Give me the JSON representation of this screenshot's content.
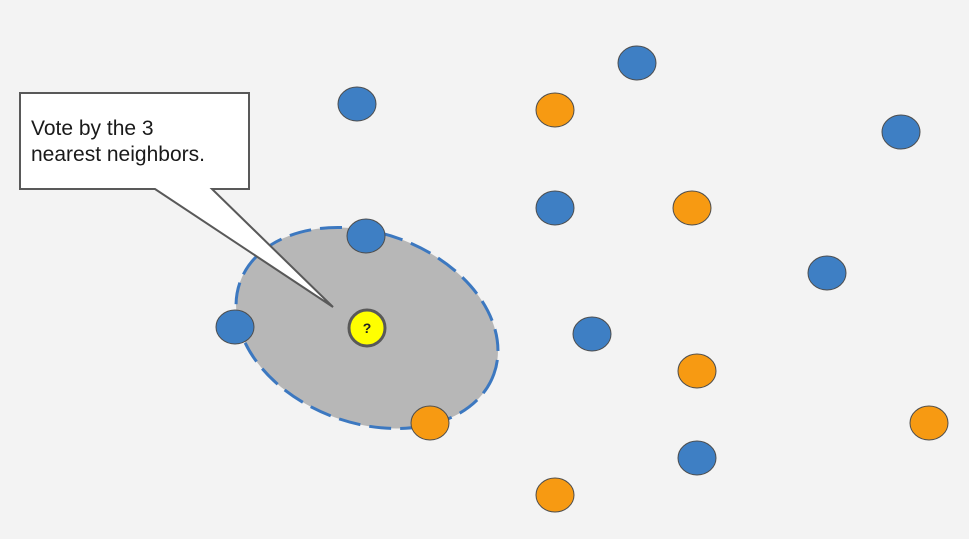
{
  "callout": {
    "text": "Vote by the 3\nnearest neighbors."
  },
  "query_point": {
    "label": "?",
    "color": "#ffff00",
    "border_color": "#595959"
  },
  "neighborhood": {
    "fill": "#b7b7b7",
    "border_color": "#3c78c0",
    "border_style": "dashed"
  },
  "colors": {
    "blue": "#3e7fc4",
    "orange": "#f79a12",
    "point_border": "#4d4d4d",
    "background": "#f3f3f3"
  },
  "points": [
    {
      "class": "blue",
      "in_neighborhood": false
    },
    {
      "class": "orange",
      "in_neighborhood": false
    },
    {
      "class": "blue",
      "in_neighborhood": false
    },
    {
      "class": "blue",
      "in_neighborhood": false
    },
    {
      "class": "blue",
      "in_neighborhood": true
    },
    {
      "class": "blue",
      "in_neighborhood": false
    },
    {
      "class": "orange",
      "in_neighborhood": false
    },
    {
      "class": "blue",
      "in_neighborhood": false
    },
    {
      "class": "blue",
      "in_neighborhood": true
    },
    {
      "class": "blue",
      "in_neighborhood": false
    },
    {
      "class": "orange",
      "in_neighborhood": false
    },
    {
      "class": "orange",
      "in_neighborhood": true
    },
    {
      "class": "orange",
      "in_neighborhood": false
    },
    {
      "class": "blue",
      "in_neighborhood": false
    },
    {
      "class": "orange",
      "in_neighborhood": false
    }
  ]
}
